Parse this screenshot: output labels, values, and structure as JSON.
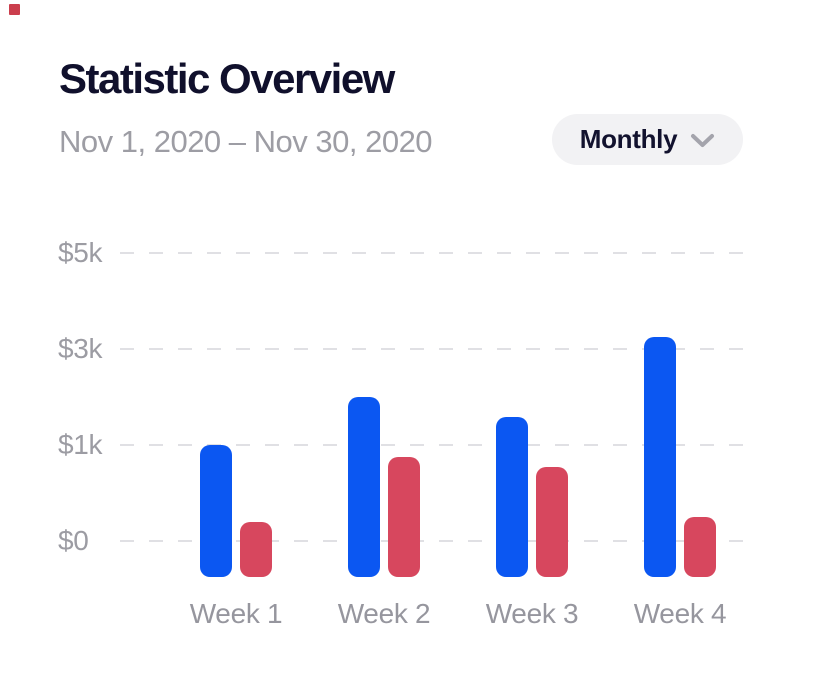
{
  "window": {
    "background": "#ffffff"
  },
  "corner_marker": {
    "color": "#cb3e4d"
  },
  "header": {
    "title": "Statistic Overview",
    "date_range": "Nov 1, 2020 – Nov 30, 2020",
    "period_selector": {
      "label": "Monthly",
      "icon": "chevron-down-icon"
    }
  },
  "chart_data": {
    "type": "bar",
    "title": "Statistic Overview",
    "categories": [
      "Week 1",
      "Week 2",
      "Week 3",
      "Week 4"
    ],
    "series": [
      {
        "name": "blue",
        "color": "#0b57f2",
        "values": [
          1000,
          2000,
          1575,
          3250
        ]
      },
      {
        "name": "red",
        "color": "#d7475e",
        "values": [
          200,
          870,
          770,
          250
        ]
      }
    ],
    "y_axis": {
      "tick_labels": [
        "$0",
        "$1k",
        "$3k",
        "$5k"
      ],
      "tick_values": [
        0,
        1000,
        3000,
        5000
      ],
      "spacing": "equal",
      "range": [
        0,
        5000
      ]
    },
    "x_axis_label": "",
    "grid": "dashed-horizontal",
    "legend": "none"
  }
}
